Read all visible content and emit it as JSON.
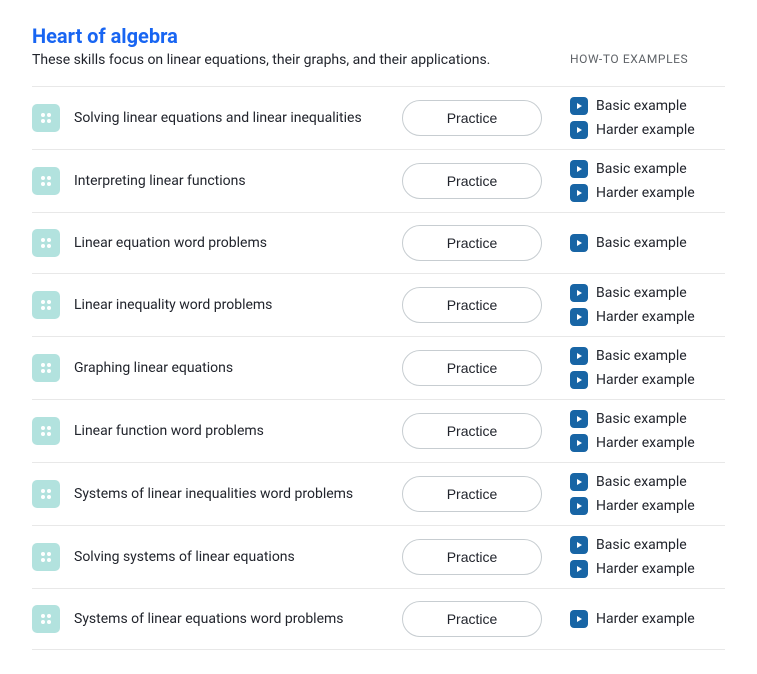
{
  "colors": {
    "title": "#1865f2",
    "text": "#21242c",
    "muted": "#5f6368",
    "border": "#e8e8e8",
    "icon_bg": "#b2e2de",
    "play_bg": "#1865a5",
    "btn_border": "#c7cdd1",
    "background": "#ffffff"
  },
  "header": {
    "title": "Heart of algebra",
    "subtitle": "These skills focus on linear equations, their graphs, and their applications.",
    "howto_label": "HOW-TO EXAMPLES"
  },
  "practice_label": "Practice",
  "example_labels": {
    "basic": "Basic example",
    "harder": "Harder example"
  },
  "skills": [
    {
      "name": "Solving linear equations and linear inequalities",
      "examples": [
        "basic",
        "harder"
      ]
    },
    {
      "name": "Interpreting linear functions",
      "examples": [
        "basic",
        "harder"
      ]
    },
    {
      "name": "Linear equation word problems",
      "examples": [
        "basic"
      ]
    },
    {
      "name": "Linear inequality word problems",
      "examples": [
        "basic",
        "harder"
      ]
    },
    {
      "name": "Graphing linear equations",
      "examples": [
        "basic",
        "harder"
      ]
    },
    {
      "name": "Linear function word problems",
      "examples": [
        "basic",
        "harder"
      ]
    },
    {
      "name": "Systems of linear inequalities word problems",
      "examples": [
        "basic",
        "harder"
      ]
    },
    {
      "name": "Solving systems of linear equations",
      "examples": [
        "basic",
        "harder"
      ]
    },
    {
      "name": "Systems of linear equations word problems",
      "examples": [
        "harder"
      ]
    }
  ]
}
